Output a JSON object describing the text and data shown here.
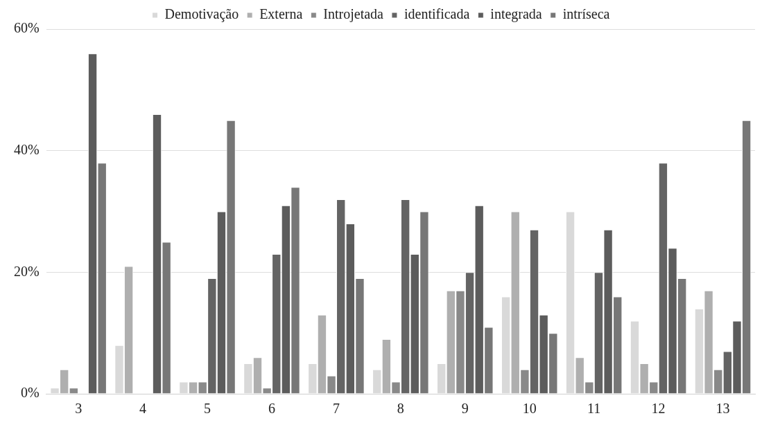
{
  "chart_data": {
    "type": "bar",
    "categories": [
      "3",
      "4",
      "5",
      "6",
      "7",
      "8",
      "9",
      "10",
      "11",
      "12",
      "13"
    ],
    "series": [
      {
        "name": "Demotivação",
        "color": "#d9d9d9",
        "values": [
          1,
          8,
          2,
          5,
          5,
          4,
          5,
          16,
          30,
          12,
          14
        ]
      },
      {
        "name": "Externa",
        "color": "#afafaf",
        "values": [
          4,
          21,
          2,
          6,
          13,
          9,
          17,
          30,
          6,
          5,
          17
        ]
      },
      {
        "name": "Introjetada",
        "color": "#898989",
        "values": [
          1,
          0,
          2,
          1,
          3,
          2,
          17,
          4,
          2,
          2,
          4
        ]
      },
      {
        "name": "identificada",
        "color": "#646464",
        "values": [
          0,
          0,
          19,
          23,
          32,
          32,
          20,
          27,
          20,
          38,
          7
        ]
      },
      {
        "name": "integrada",
        "color": "#5c5c5c",
        "values": [
          56,
          46,
          30,
          31,
          28,
          23,
          31,
          13,
          27,
          24,
          12
        ]
      },
      {
        "name": "intríseca",
        "color": "#777777",
        "values": [
          38,
          25,
          45,
          34,
          19,
          30,
          11,
          10,
          16,
          19,
          45
        ]
      }
    ],
    "ylim": [
      0,
      60
    ],
    "yticks": [
      {
        "value": 0,
        "label": "0%"
      },
      {
        "value": 20,
        "label": "20%"
      },
      {
        "value": 40,
        "label": "40%"
      },
      {
        "value": 60,
        "label": "60%"
      }
    ],
    "grid": "y",
    "legend": "top"
  }
}
